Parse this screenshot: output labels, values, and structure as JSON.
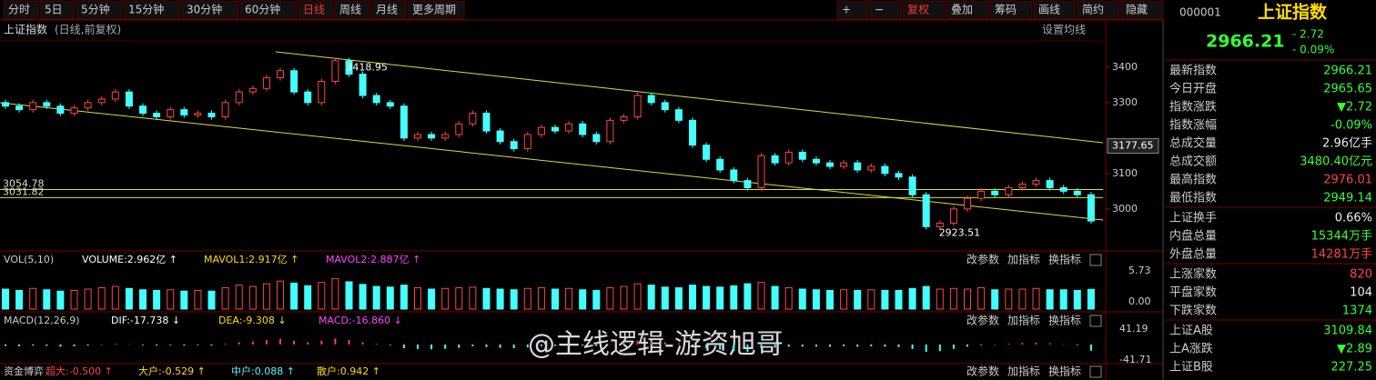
{
  "toolbar": {
    "left": [
      "分时",
      "5日",
      "5分钟",
      "15分钟",
      "30分钟",
      "60分钟",
      "日线",
      "周线",
      "月线",
      "更多周期"
    ],
    "right": [
      "+",
      "−",
      "复权",
      "叠加",
      "筹码",
      "画线",
      "简约",
      "隐藏"
    ]
  },
  "header": {
    "title": "上证指数",
    "subtitle": "(日线,前复权)",
    "settings": "设置均线"
  },
  "price": {
    "ylim": [
      2897,
      3474
    ],
    "yticks": [
      3000,
      3100,
      3300,
      3400
    ],
    "current": {
      "value": 3177.65,
      "label": "3177.65"
    },
    "levels": [
      {
        "value": 3054.78,
        "label": "3054.78"
      },
      {
        "value": 3031.82,
        "label": "3031.82"
      }
    ],
    "high": {
      "value": 3418.95,
      "label": "3418.95"
    },
    "low": {
      "value": 2923.51,
      "label": "2923.51"
    },
    "closes": [
      3290,
      3280,
      3300,
      3290,
      3270,
      3285,
      3300,
      3310,
      3330,
      3290,
      3270,
      3260,
      3280,
      3265,
      3270,
      3260,
      3300,
      3330,
      3340,
      3370,
      3390,
      3330,
      3300,
      3360,
      3418,
      3380,
      3320,
      3300,
      3290,
      3200,
      3210,
      3200,
      3210,
      3240,
      3270,
      3220,
      3190,
      3170,
      3210,
      3230,
      3220,
      3240,
      3210,
      3190,
      3250,
      3260,
      3320,
      3300,
      3280,
      3250,
      3180,
      3140,
      3110,
      3080,
      3060,
      3150,
      3130,
      3160,
      3140,
      3130,
      3120,
      3130,
      3110,
      3120,
      3100,
      3090,
      3040,
      2950,
      2960,
      3000,
      3030,
      3050,
      3040,
      3060,
      3070,
      3080,
      3060,
      3050,
      3040,
      2966
    ]
  },
  "volume": {
    "legend": [
      "VOL(5,10)",
      "VOLUME:2.962亿 ↑",
      "MAVOL1:2.917亿 ↑",
      "MAVOL2:2.887亿 ↑"
    ],
    "ylim": [
      0,
      5.73
    ],
    "yticks": [
      {
        "value": 5.73,
        "label": "5.73"
      },
      {
        "value": 0,
        "label": "0.00"
      }
    ],
    "values": [
      3.0,
      2.8,
      3.1,
      2.9,
      2.7,
      2.8,
      3.0,
      3.2,
      3.4,
      3.1,
      2.9,
      2.8,
      2.9,
      2.7,
      2.8,
      2.7,
      3.2,
      3.6,
      3.4,
      3.8,
      4.2,
      3.9,
      3.5,
      4.0,
      4.6,
      4.1,
      3.7,
      3.4,
      3.3,
      3.6,
      3.2,
      3.0,
      3.1,
      3.2,
      3.3,
      3.1,
      3.0,
      2.9,
      3.1,
      3.2,
      3.0,
      3.1,
      2.9,
      2.8,
      3.2,
      3.4,
      3.8,
      3.6,
      3.3,
      3.2,
      3.6,
      3.4,
      3.3,
      3.5,
      3.8,
      4.0,
      3.4,
      3.2,
      3.0,
      2.9,
      2.8,
      2.9,
      2.8,
      2.9,
      2.8,
      2.8,
      3.1,
      3.4,
      3.0,
      3.1,
      3.0,
      3.2,
      2.9,
      3.0,
      3.0,
      3.1,
      2.9,
      2.9,
      2.8,
      2.96
    ]
  },
  "macd": {
    "legend": [
      "MACD(12,26,9)",
      "DIF:-17.738 ↓",
      "DEA:-9.308 ↓",
      "MACD:-16.860 ↓"
    ],
    "ylim": [
      -41.71,
      41.19
    ],
    "yticks": [
      {
        "value": 41.19,
        "label": "41.19"
      },
      {
        "value": -41.71,
        "label": "-41.71"
      }
    ],
    "values": [
      -4,
      -5,
      -3,
      -4,
      -6,
      -5,
      -3,
      -1,
      2,
      1,
      -2,
      -3,
      -2,
      -3,
      -2,
      -3,
      2,
      6,
      8,
      12,
      15,
      10,
      6,
      10,
      16,
      12,
      6,
      2,
      -2,
      -10,
      -12,
      -13,
      -12,
      -9,
      -5,
      -7,
      -9,
      -10,
      -8,
      -5,
      -4,
      -2,
      -3,
      -4,
      1,
      4,
      10,
      9,
      6,
      3,
      -5,
      -10,
      -14,
      -18,
      -20,
      -10,
      -9,
      -6,
      -6,
      -6,
      -6,
      -5,
      -6,
      -5,
      -6,
      -7,
      -12,
      -20,
      -18,
      -12,
      -6,
      -2,
      -1,
      2,
      4,
      5,
      3,
      1,
      -2,
      -16.86
    ]
  },
  "funds": [
    "资金博弈",
    "超大:-0.500 ↑",
    "大户:-0.529 ↑",
    "中户:0.088 ↑",
    "散户:0.942 ↑"
  ],
  "panel_tools": [
    "改参数",
    "加指标",
    "换指标"
  ],
  "watermark": "@主线逻辑-游资旭哥",
  "quote": {
    "code": "000001",
    "name": "上证指数",
    "price": "2966.21",
    "change": "- 2.72",
    "pct": "- 0.09%",
    "rows": [
      [
        "最新指数",
        "2966.21"
      ],
      [
        "今日开盘",
        "2965.65"
      ],
      [
        "指数涨跌",
        "▼2.72"
      ],
      [
        "指数涨幅",
        "-0.09%"
      ],
      [
        "总成交量",
        "2.96亿手"
      ],
      [
        "总成交额",
        "3480.40亿元"
      ],
      [
        "最高指数",
        "2976.01"
      ],
      [
        "最低指数",
        "2949.14"
      ],
      [
        "上证换手",
        "0.66%"
      ],
      [
        "内盘总量",
        "15344万手"
      ],
      [
        "外盘总量",
        "14281万手"
      ],
      [
        "上涨家数",
        "820"
      ],
      [
        "平盘家数",
        "104"
      ],
      [
        "下跌家数",
        "1374"
      ],
      [
        "上证A股",
        "3109.84"
      ],
      [
        "上A涨跌",
        "▼2.89"
      ],
      [
        "上证B股",
        "227.25"
      ]
    ],
    "row_colors": [
      "#3f3",
      "#3f3",
      "#3f3",
      "#3f3",
      "#eee",
      "#3f3",
      "#f44",
      "#3f3",
      "#eee",
      "#3f3",
      "#f44",
      "#f44",
      "#eee",
      "#3f3",
      "#3f3",
      "#3f3",
      "#3f3"
    ]
  }
}
